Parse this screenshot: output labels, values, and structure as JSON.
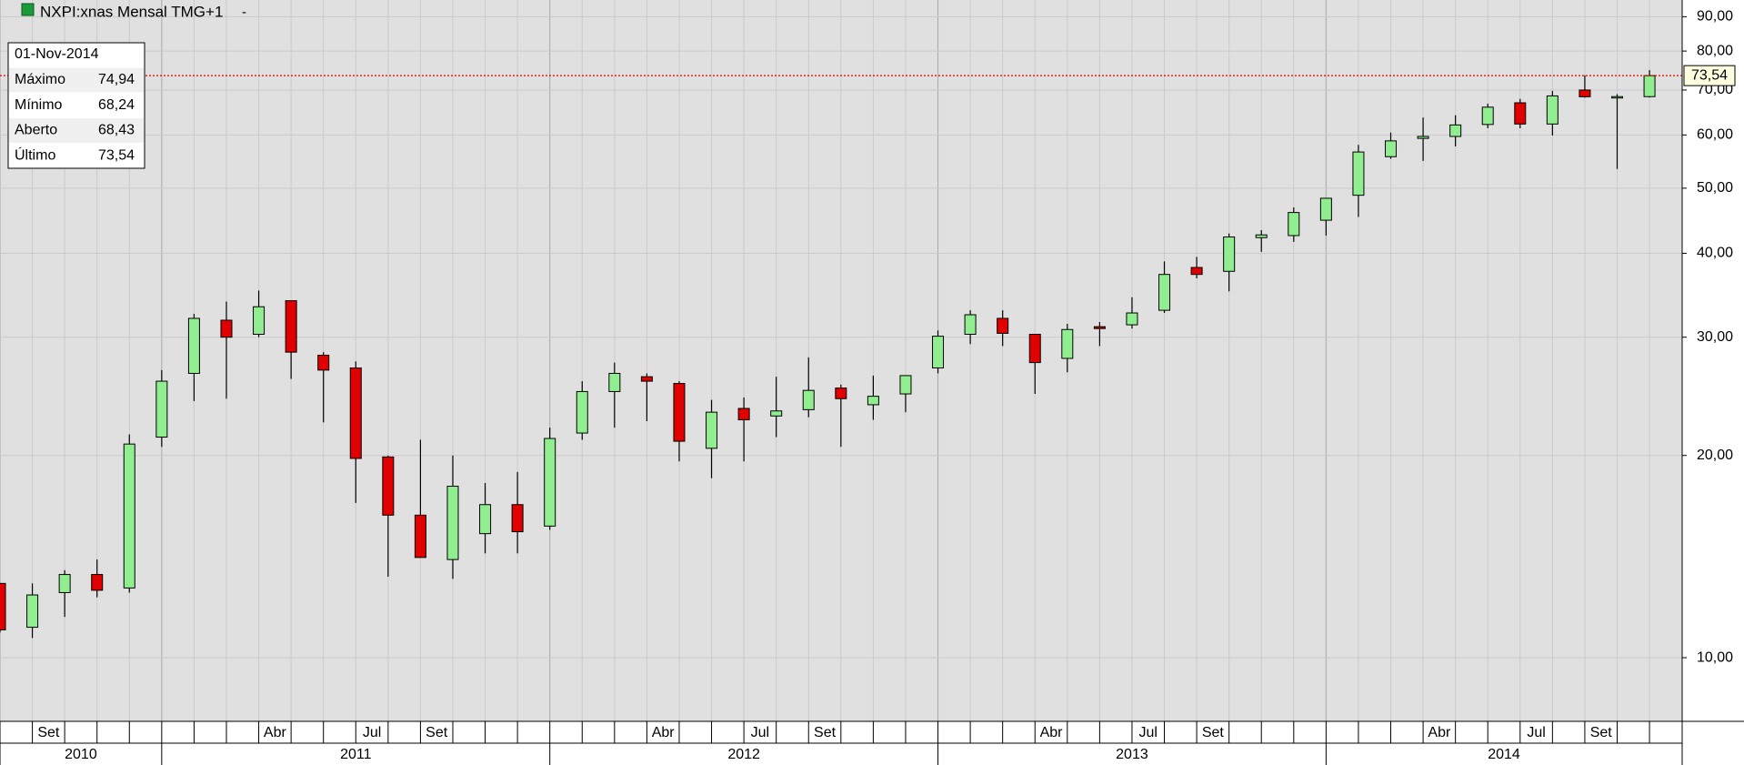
{
  "chart_data": {
    "type": "candlestick",
    "title": "NXPI:xnas Mensal TMG+1",
    "log_scale": true,
    "grid": true,
    "colors": {
      "up": "#90ee90",
      "down": "#e00000",
      "last_line": "#e00000"
    },
    "x": [
      "2010-08",
      "2010-09",
      "2010-10",
      "2010-11",
      "2010-12",
      "2011-01",
      "2011-02",
      "2011-03",
      "2011-04",
      "2011-05",
      "2011-06",
      "2011-07",
      "2011-08",
      "2011-09",
      "2011-10",
      "2011-11",
      "2011-12",
      "2012-01",
      "2012-02",
      "2012-03",
      "2012-04",
      "2012-05",
      "2012-06",
      "2012-07",
      "2012-08",
      "2012-09",
      "2012-10",
      "2012-11",
      "2012-12",
      "2013-01",
      "2013-02",
      "2013-03",
      "2013-04",
      "2013-05",
      "2013-06",
      "2013-07",
      "2013-08",
      "2013-09",
      "2013-10",
      "2013-11",
      "2013-12",
      "2014-01",
      "2014-02",
      "2014-03",
      "2014-04",
      "2014-05",
      "2014-06",
      "2014-07",
      "2014-08",
      "2014-09",
      "2014-10",
      "2014-11"
    ],
    "month_labels": [
      null,
      "Set",
      null,
      null,
      null,
      null,
      null,
      null,
      "Abr",
      null,
      null,
      "Jul",
      null,
      "Set",
      null,
      null,
      null,
      null,
      null,
      null,
      "Abr",
      null,
      null,
      "Jul",
      null,
      "Set",
      null,
      null,
      null,
      null,
      null,
      null,
      "Abr",
      null,
      null,
      "Jul",
      null,
      "Set",
      null,
      null,
      null,
      null,
      null,
      null,
      "Abr",
      null,
      null,
      "Jul",
      null,
      "Set",
      null,
      null
    ],
    "year_labels": [
      "2010",
      "2011",
      "2012",
      "2013",
      "2014"
    ],
    "open": [
      12.9,
      11.1,
      12.5,
      13.3,
      12.7,
      21.3,
      26.5,
      31.8,
      30.3,
      34.0,
      28.2,
      27.0,
      19.9,
      16.3,
      14.0,
      15.3,
      16.9,
      15.7,
      21.6,
      24.9,
      26.2,
      25.6,
      20.5,
      23.5,
      22.9,
      23.4,
      25.2,
      23.8,
      24.7,
      27.0,
      30.3,
      32.0,
      30.3,
      27.9,
      31.1,
      31.3,
      32.9,
      38.1,
      37.6,
      42.2,
      42.5,
      44.8,
      48.8,
      55.7,
      59.3,
      59.7,
      62.2,
      67.0,
      62.3,
      70.0,
      68.2,
      68.43
    ],
    "high": [
      12.9,
      12.9,
      13.5,
      14.0,
      21.5,
      26.8,
      32.5,
      33.9,
      35.2,
      34.0,
      28.5,
      27.6,
      20.0,
      21.1,
      20.0,
      18.2,
      18.9,
      22.0,
      25.8,
      27.5,
      26.5,
      25.8,
      24.2,
      24.4,
      26.2,
      28.0,
      25.5,
      26.3,
      26.3,
      30.7,
      32.9,
      32.9,
      30.3,
      31.4,
      31.6,
      34.4,
      38.9,
      39.5,
      42.8,
      43.3,
      46.8,
      48.3,
      58.0,
      60.5,
      63.7,
      64.2,
      66.8,
      67.9,
      69.8,
      73.6,
      69.0,
      74.94
    ],
    "low": [
      10.9,
      10.7,
      11.5,
      12.3,
      12.5,
      20.6,
      24.1,
      24.3,
      30.0,
      26.0,
      22.4,
      17.0,
      13.2,
      14.1,
      13.1,
      14.3,
      14.3,
      15.5,
      21.1,
      22.0,
      22.5,
      19.6,
      18.5,
      19.6,
      21.3,
      22.8,
      20.6,
      22.6,
      23.2,
      26.5,
      29.3,
      29.1,
      24.7,
      26.6,
      29.1,
      30.9,
      32.6,
      36.7,
      35.1,
      40.2,
      41.6,
      42.5,
      45.3,
      55.3,
      54.9,
      57.7,
      61.4,
      61.4,
      59.9,
      68.2,
      53.4,
      68.24
    ],
    "close": [
      11.0,
      12.4,
      13.3,
      12.6,
      20.8,
      25.8,
      32.0,
      30.0,
      33.3,
      28.5,
      26.8,
      19.8,
      16.3,
      14.1,
      18.0,
      16.9,
      15.4,
      21.2,
      24.9,
      26.5,
      25.8,
      21.0,
      23.2,
      22.6,
      23.3,
      25.0,
      24.3,
      24.5,
      26.3,
      30.1,
      32.4,
      30.4,
      27.5,
      30.8,
      30.9,
      32.6,
      37.2,
      37.2,
      42.3,
      42.6,
      46.0,
      48.3,
      56.6,
      58.8,
      59.7,
      62.1,
      66.0,
      62.3,
      68.6,
      68.4,
      68.43,
      73.54
    ],
    "ylim": [
      8.04,
      95.3
    ],
    "yticks": [
      {
        "value": 10,
        "label": "10,00"
      },
      {
        "value": 20,
        "label": "20,00"
      },
      {
        "value": 30,
        "label": "30,00"
      },
      {
        "value": 40,
        "label": "40,00"
      },
      {
        "value": 50,
        "label": "50,00"
      },
      {
        "value": 60,
        "label": "60,00"
      },
      {
        "value": 70,
        "label": "70,00"
      },
      {
        "value": 80,
        "label": "80,00"
      },
      {
        "value": 90,
        "label": "90,00"
      }
    ],
    "last_price": {
      "value": 73.54,
      "label": "73,54"
    },
    "info_box": {
      "date": "01-Nov-2014",
      "rows": [
        {
          "label": "Máximo",
          "value": "74,94"
        },
        {
          "label": "Mínimo",
          "value": "68,24"
        },
        {
          "label": "Aberto",
          "value": "68,43"
        },
        {
          "label": "Último",
          "value": "73,54"
        }
      ]
    }
  }
}
